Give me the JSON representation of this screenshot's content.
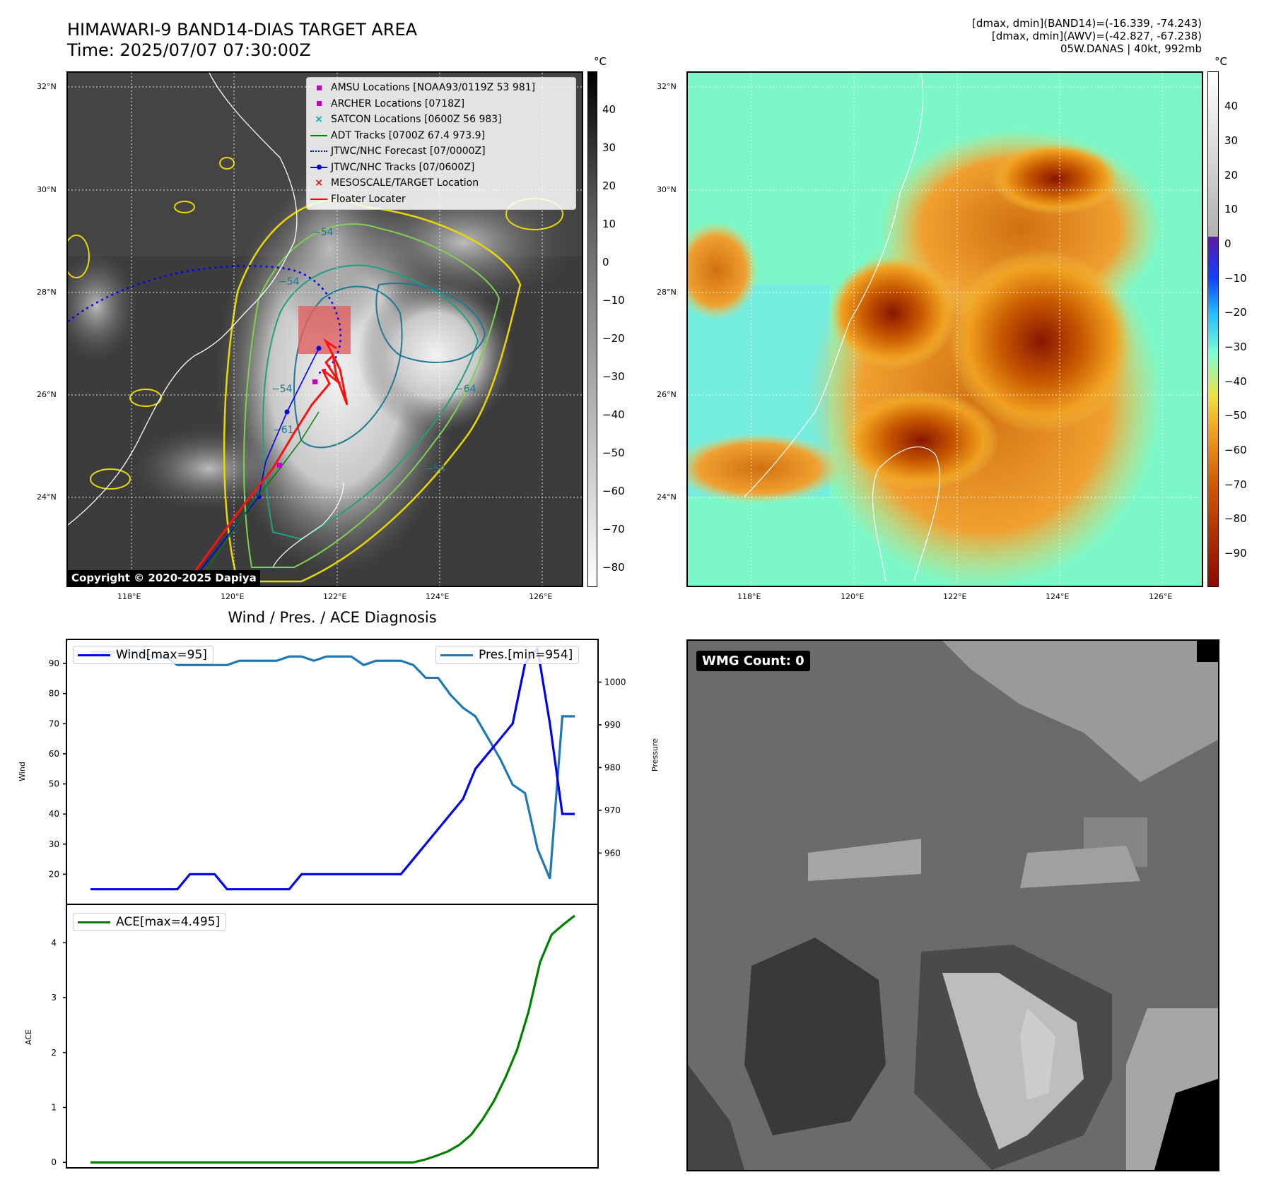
{
  "header": {
    "title_line1": "HIMAWARI-9 BAND14-DIAS TARGET AREA",
    "title_line2": "Time: 2025/07/07 07:30:00Z",
    "info_line1": "[dmax, dmin](BAND14)=(-16.339, -74.243)",
    "info_line2": "[dmax, dmin](AWV)=(-42.827, -67.238)",
    "info_line3": "05W.DANAS | 40kt, 992mb"
  },
  "map_axes": {
    "lat_labels": [
      "32°N",
      "30°N",
      "28°N",
      "26°N",
      "24°N"
    ],
    "lon_labels": [
      "118°E",
      "120°E",
      "122°E",
      "124°E",
      "126°E"
    ]
  },
  "ir_map": {
    "colorbar_unit": "°C",
    "colorbar_ticks": [
      "40",
      "30",
      "20",
      "10",
      "0",
      "−10",
      "−20",
      "−30",
      "−40",
      "−50",
      "−60",
      "−70",
      "−80"
    ],
    "contour_labels": [
      "−54",
      "−54",
      "−54",
      "−64",
      "−61",
      "−54"
    ],
    "copyright": "Copyright © 2020-2025 Dapiya",
    "legend": [
      {
        "label": "AMSU Locations [NOAA93/0119Z 53 981]",
        "symbol": "square",
        "color": "#c000c0"
      },
      {
        "label": "ARCHER Locations [0718Z]",
        "symbol": "square",
        "color": "#c000c0"
      },
      {
        "label": "SATCON Locations [0600Z 56 983]",
        "symbol": "x",
        "color": "#00b0b0"
      },
      {
        "label": "ADT Tracks [0700Z 67.4 973.9]",
        "symbol": "line",
        "color": "#008000"
      },
      {
        "label": "JTWC/NHC Forecast [07/0000Z]",
        "symbol": "dotted",
        "color": "#0000ff"
      },
      {
        "label": "JTWC/NHC Tracks [07/0600Z]",
        "symbol": "line-dot",
        "color": "#0000ff"
      },
      {
        "label": "MESOSCALE/TARGET Location",
        "symbol": "x",
        "color": "#ff0000"
      },
      {
        "label": "Floater Locater",
        "symbol": "line",
        "color": "#ff0000"
      }
    ]
  },
  "awv_map": {
    "colorbar_unit": "°C",
    "colorbar_ticks": [
      "40",
      "30",
      "20",
      "10",
      "0",
      "−10",
      "−20",
      "−30",
      "−40",
      "−50",
      "−60",
      "−70",
      "−80",
      "−90"
    ]
  },
  "wmg_panel": {
    "label": "WMG Count: 0"
  },
  "chart_data": [
    {
      "type": "line",
      "title": "Wind / Pres. / ACE Diagnosis",
      "ylabel": "Wind",
      "ylabel_right": "Pressure",
      "ylim": [
        10,
        98
      ],
      "ylim_right": [
        948,
        1010
      ],
      "yticks": [
        20,
        30,
        40,
        50,
        60,
        70,
        80,
        90
      ],
      "yticks_right": [
        960,
        970,
        980,
        990,
        1000
      ],
      "legend_left": "top-left",
      "legend_right": "top-right",
      "series": [
        {
          "name": "Wind[max=95]",
          "axis": "left",
          "color": "#0000ee",
          "values": [
            15,
            15,
            15,
            15,
            15,
            15,
            15,
            15,
            20,
            20,
            20,
            15,
            15,
            15,
            15,
            15,
            15,
            20,
            20,
            20,
            20,
            20,
            20,
            20,
            20,
            20,
            25,
            30,
            35,
            40,
            45,
            55,
            60,
            65,
            70,
            90,
            95,
            70,
            40,
            40
          ]
        },
        {
          "name": "Pres.[min=954]",
          "axis": "right",
          "color": "#1f77b4",
          "values": [
            1007,
            1007,
            1007,
            1007,
            1007,
            1006,
            1006,
            1004,
            1004,
            1004,
            1004,
            1004,
            1005,
            1005,
            1005,
            1005,
            1006,
            1006,
            1005,
            1006,
            1006,
            1006,
            1004,
            1005,
            1005,
            1005,
            1004,
            1001,
            1001,
            997,
            994,
            992,
            987,
            982,
            976,
            974,
            961,
            954,
            992,
            992
          ]
        }
      ]
    },
    {
      "type": "line",
      "ylabel": "ACE",
      "ylim": [
        -0.1,
        4.7
      ],
      "yticks": [
        0,
        1,
        2,
        3,
        4
      ],
      "legend": "top-left",
      "series": [
        {
          "name": "ACE[max=4.495]",
          "color": "#008000",
          "values": [
            0,
            0,
            0,
            0,
            0,
            0,
            0,
            0,
            0,
            0,
            0,
            0,
            0,
            0,
            0,
            0,
            0,
            0,
            0,
            0,
            0,
            0,
            0,
            0,
            0,
            0,
            0,
            0,
            0,
            0.05,
            0.12,
            0.2,
            0.32,
            0.5,
            0.78,
            1.12,
            1.55,
            2.05,
            2.75,
            3.65,
            4.15,
            4.33,
            4.495
          ]
        }
      ]
    }
  ]
}
